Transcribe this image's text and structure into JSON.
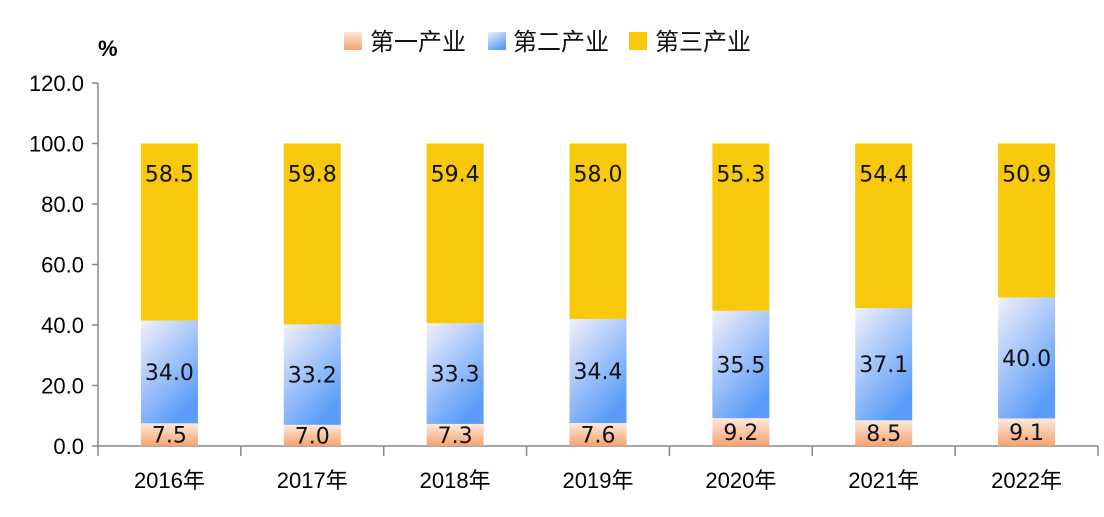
{
  "chart_data": {
    "type": "bar",
    "stacked": true,
    "unit": "%",
    "categories": [
      "2016年",
      "2017年",
      "2018年",
      "2019年",
      "2020年",
      "2021年",
      "2022年"
    ],
    "series": [
      {
        "name": "第一产业",
        "values": [
          7.5,
          7.0,
          7.3,
          7.6,
          9.2,
          8.5,
          9.1
        ],
        "color": "#f4a97a"
      },
      {
        "name": "第二产业",
        "values": [
          34.0,
          33.2,
          33.3,
          34.4,
          35.5,
          37.1,
          40.0
        ],
        "color": "#6aa8f8"
      },
      {
        "name": "第三产业",
        "values": [
          58.5,
          59.8,
          59.4,
          58.0,
          55.3,
          54.4,
          50.9
        ],
        "color": "#f7c90a"
      }
    ],
    "ylim": [
      0,
      120
    ],
    "yticks": [
      "0.0",
      "20.0",
      "40.0",
      "60.0",
      "80.0",
      "100.0",
      "120.0"
    ],
    "legend_position": "top-center",
    "grid": false
  }
}
